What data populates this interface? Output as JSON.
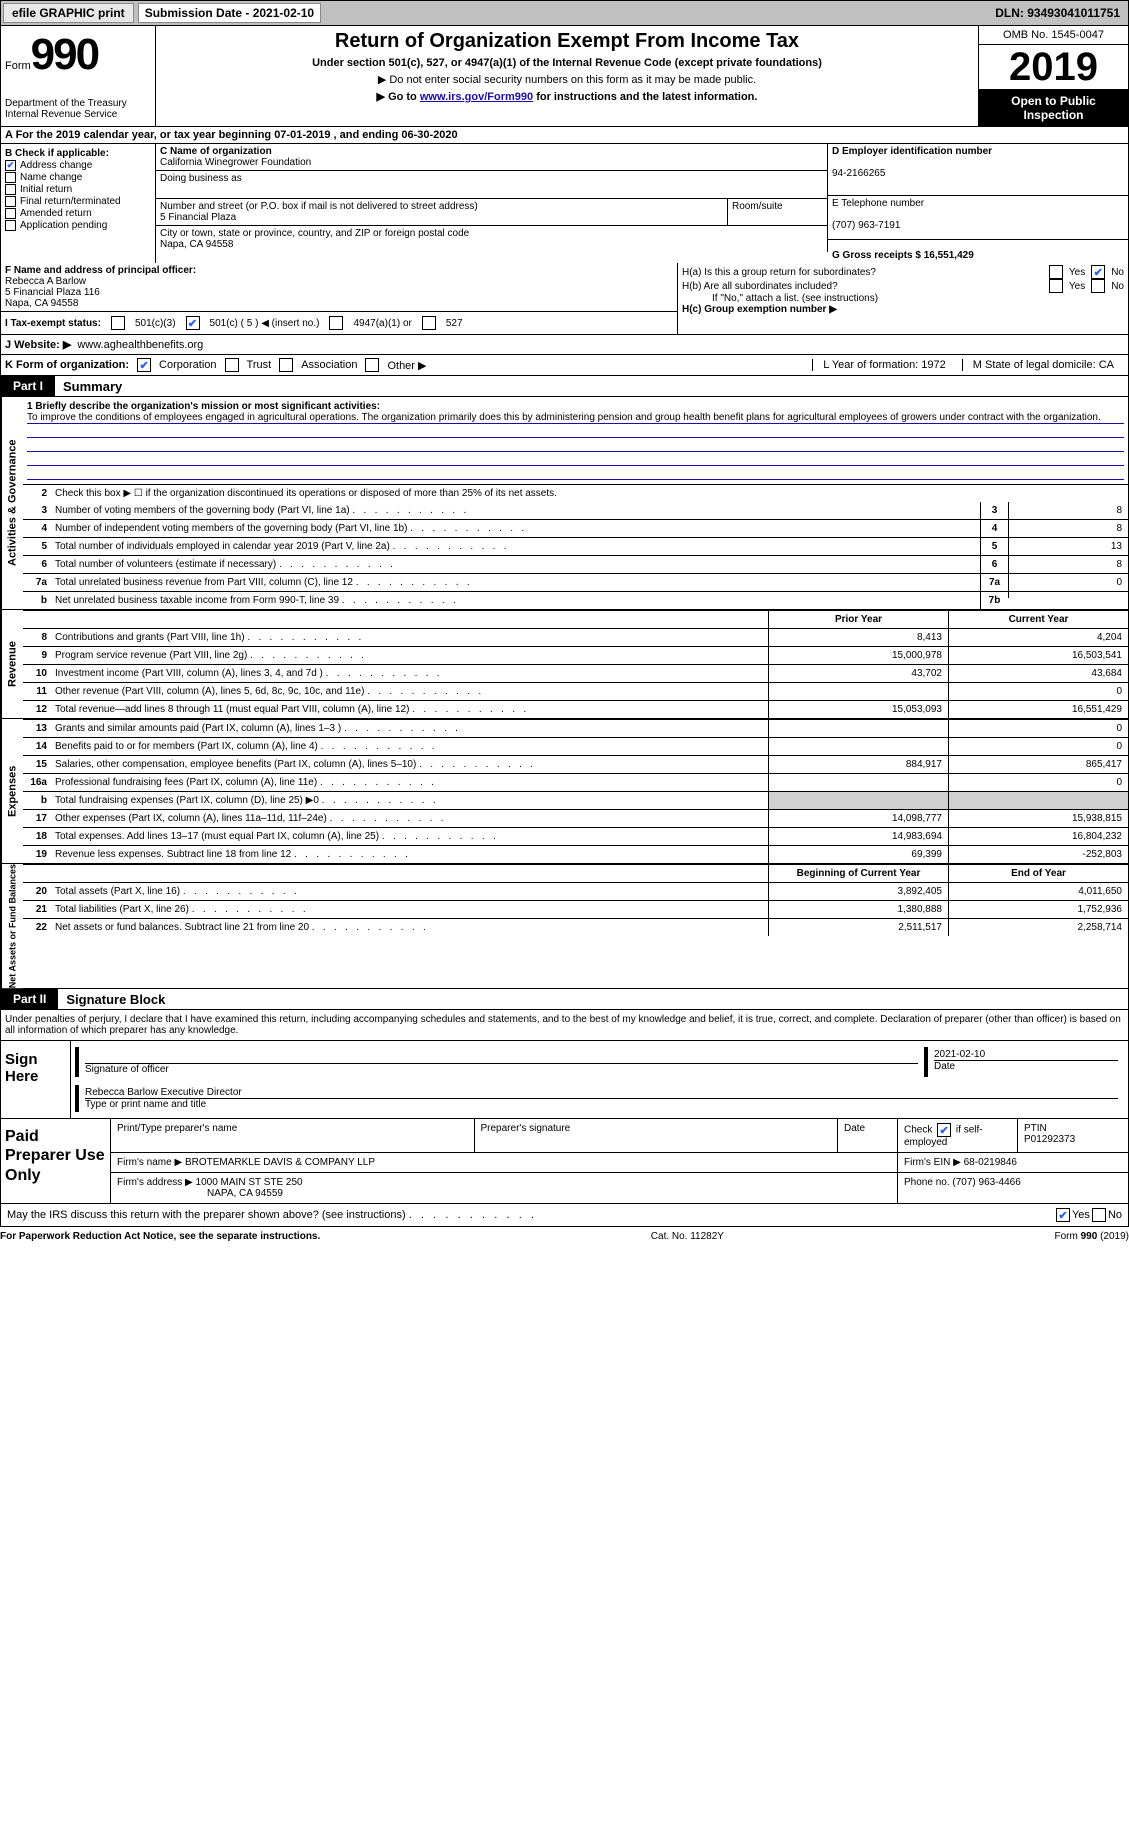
{
  "topbar": {
    "efile": "efile GRAPHIC print",
    "submission_label": "Submission Date - 2021-02-10",
    "dln": "DLN: 93493041011751"
  },
  "header": {
    "form_prefix": "Form",
    "form_num": "990",
    "dept": "Department of the Treasury\nInternal Revenue Service",
    "title": "Return of Organization Exempt From Income Tax",
    "sub1": "Under section 501(c), 527, or 4947(a)(1) of the Internal Revenue Code (except private foundations)",
    "sub2": "▶ Do not enter social security numbers on this form as it may be made public.",
    "sub3_pre": "▶ Go to ",
    "sub3_link": "www.irs.gov/Form990",
    "sub3_post": " for instructions and the latest information.",
    "omb": "OMB No. 1545-0047",
    "year": "2019",
    "inspect": "Open to Public Inspection"
  },
  "row_a": "A For the 2019 calendar year, or tax year beginning 07-01-2019    , and ending 06-30-2020",
  "col_b": {
    "label": "B Check if applicable:",
    "items": [
      {
        "text": "Address change",
        "checked": true
      },
      {
        "text": "Name change",
        "checked": false
      },
      {
        "text": "Initial return",
        "checked": false
      },
      {
        "text": "Final return/terminated",
        "checked": false
      },
      {
        "text": "Amended return",
        "checked": false
      },
      {
        "text": "Application pending",
        "checked": false
      }
    ]
  },
  "col_c": {
    "name_label": "C Name of organization",
    "name": "California Winegrower Foundation",
    "dba_label": "Doing business as",
    "addr_label": "Number and street (or P.O. box if mail is not delivered to street address)",
    "addr": "5 Financial Plaza",
    "room_label": "Room/suite",
    "city_label": "City or town, state or province, country, and ZIP or foreign postal code",
    "city": "Napa, CA  94558"
  },
  "col_d": {
    "ein_label": "D Employer identification number",
    "ein": "94-2166265",
    "tel_label": "E Telephone number",
    "tel": "(707) 963-7191",
    "gross_label": "G Gross receipts $ 16,551,429"
  },
  "officer": {
    "f_label": "F  Name and address of principal officer:",
    "name": "Rebecca A Barlow",
    "addr1": "5 Financial Plaza 116",
    "addr2": "Napa, CA  94558"
  },
  "h": {
    "ha": "H(a)  Is this a group return for subordinates?",
    "hb": "H(b)  Are all subordinates included?",
    "hb_note": "If \"No,\" attach a list. (see instructions)",
    "hc": "H(c)  Group exemption number ▶"
  },
  "status": {
    "label": "I     Tax-exempt status:",
    "opts": [
      "501(c)(3)",
      "501(c) ( 5 ) ◀ (insert no.)",
      "4947(a)(1) or",
      "527"
    ]
  },
  "website": {
    "label": "J    Website: ▶",
    "url": "www.aghealthbenefits.org"
  },
  "k": {
    "label": "K Form of organization:",
    "opts": [
      "Corporation",
      "Trust",
      "Association",
      "Other ▶"
    ],
    "l": "L Year of formation: 1972",
    "m": "M State of legal domicile: CA"
  },
  "parts": {
    "p1": "Part I",
    "p1_title": "Summary",
    "p2": "Part II",
    "p2_title": "Signature Block"
  },
  "mission": {
    "q1": "1  Briefly describe the organization's mission or most significant activities:",
    "text": "To improve the conditions of employees engaged in agricultural operations. The organization primarily does this by administering pension and group health benefit plans for agricultural employees of growers under contract with the organization.",
    "q2": "Check this box ▶ ☐  if the organization discontinued its operations or disposed of more than 25% of its net assets."
  },
  "gov_lines": [
    {
      "n": "3",
      "t": "Number of voting members of the governing body (Part VI, line 1a)",
      "b": "3",
      "v": "8"
    },
    {
      "n": "4",
      "t": "Number of independent voting members of the governing body (Part VI, line 1b)",
      "b": "4",
      "v": "8"
    },
    {
      "n": "5",
      "t": "Total number of individuals employed in calendar year 2019 (Part V, line 2a)",
      "b": "5",
      "v": "13"
    },
    {
      "n": "6",
      "t": "Total number of volunteers (estimate if necessary)",
      "b": "6",
      "v": "8"
    },
    {
      "n": "7a",
      "t": "Total unrelated business revenue from Part VIII, column (C), line 12",
      "b": "7a",
      "v": "0"
    },
    {
      "n": "b",
      "t": "Net unrelated business taxable income from Form 990-T, line 39",
      "b": "7b",
      "v": ""
    }
  ],
  "col_headers": {
    "prior": "Prior Year",
    "current": "Current Year",
    "boy": "Beginning of Current Year",
    "eoy": "End of Year"
  },
  "revenue": [
    {
      "n": "8",
      "t": "Contributions and grants (Part VIII, line 1h)",
      "p": "8,413",
      "c": "4,204"
    },
    {
      "n": "9",
      "t": "Program service revenue (Part VIII, line 2g)",
      "p": "15,000,978",
      "c": "16,503,541"
    },
    {
      "n": "10",
      "t": "Investment income (Part VIII, column (A), lines 3, 4, and 7d )",
      "p": "43,702",
      "c": "43,684"
    },
    {
      "n": "11",
      "t": "Other revenue (Part VIII, column (A), lines 5, 6d, 8c, 9c, 10c, and 11e)",
      "p": "",
      "c": "0"
    },
    {
      "n": "12",
      "t": "Total revenue—add lines 8 through 11 (must equal Part VIII, column (A), line 12)",
      "p": "15,053,093",
      "c": "16,551,429"
    }
  ],
  "expenses": [
    {
      "n": "13",
      "t": "Grants and similar amounts paid (Part IX, column (A), lines 1–3 )",
      "p": "",
      "c": "0"
    },
    {
      "n": "14",
      "t": "Benefits paid to or for members (Part IX, column (A), line 4)",
      "p": "",
      "c": "0"
    },
    {
      "n": "15",
      "t": "Salaries, other compensation, employee benefits (Part IX, column (A), lines 5–10)",
      "p": "884,917",
      "c": "865,417"
    },
    {
      "n": "16a",
      "t": "Professional fundraising fees (Part IX, column (A), line 11e)",
      "p": "",
      "c": "0"
    },
    {
      "n": "b",
      "t": "Total fundraising expenses (Part IX, column (D), line 25) ▶0",
      "p": "shaded",
      "c": "shaded"
    },
    {
      "n": "17",
      "t": "Other expenses (Part IX, column (A), lines 11a–11d, 11f–24e)",
      "p": "14,098,777",
      "c": "15,938,815"
    },
    {
      "n": "18",
      "t": "Total expenses. Add lines 13–17 (must equal Part IX, column (A), line 25)",
      "p": "14,983,694",
      "c": "16,804,232"
    },
    {
      "n": "19",
      "t": "Revenue less expenses. Subtract line 18 from line 12",
      "p": "69,399",
      "c": "-252,803"
    }
  ],
  "netassets": [
    {
      "n": "20",
      "t": "Total assets (Part X, line 16)",
      "p": "3,892,405",
      "c": "4,011,650"
    },
    {
      "n": "21",
      "t": "Total liabilities (Part X, line 26)",
      "p": "1,380,888",
      "c": "1,752,936"
    },
    {
      "n": "22",
      "t": "Net assets or fund balances. Subtract line 21 from line 20",
      "p": "2,511,517",
      "c": "2,258,714"
    }
  ],
  "penalty": "Under penalties of perjury, I declare that I have examined this return, including accompanying schedules and statements, and to the best of my knowledge and belief, it is true, correct, and complete. Declaration of preparer (other than officer) is based on all information of which preparer has any knowledge.",
  "sign": {
    "here": "Sign Here",
    "sig_of_officer": "Signature of officer",
    "date": "2021-02-10",
    "date_lbl": "Date",
    "printed": "Rebecca Barlow  Executive Director",
    "printed_lbl": "Type or print name and title"
  },
  "paid": {
    "label": "Paid Preparer Use Only",
    "h1": "Print/Type preparer's name",
    "h2": "Preparer's signature",
    "h3": "Date",
    "h4_pre": "Check",
    "h4_post": "if self-employed",
    "h5": "PTIN",
    "ptin": "P01292373",
    "firm_name_lbl": "Firm's name    ▶",
    "firm_name": "BROTEMARKLE DAVIS & COMPANY LLP",
    "firm_ein_lbl": "Firm's EIN ▶",
    "firm_ein": "68-0219846",
    "firm_addr_lbl": "Firm's address ▶",
    "firm_addr1": "1000 MAIN ST STE 250",
    "firm_addr2": "NAPA, CA  94559",
    "phone_lbl": "Phone no.",
    "phone": "(707) 963-4466"
  },
  "may_irs": "May the IRS discuss this return with the preparer shown above? (see instructions)",
  "footer": {
    "left": "For Paperwork Reduction Act Notice, see the separate instructions.",
    "mid": "Cat. No. 11282Y",
    "right": "Form 990 (2019)"
  },
  "vtabs": {
    "gov": "Activities & Governance",
    "rev": "Revenue",
    "exp": "Expenses",
    "net": "Net Assets or Fund Balances"
  },
  "yesno": {
    "yes": "Yes",
    "no": "No"
  }
}
